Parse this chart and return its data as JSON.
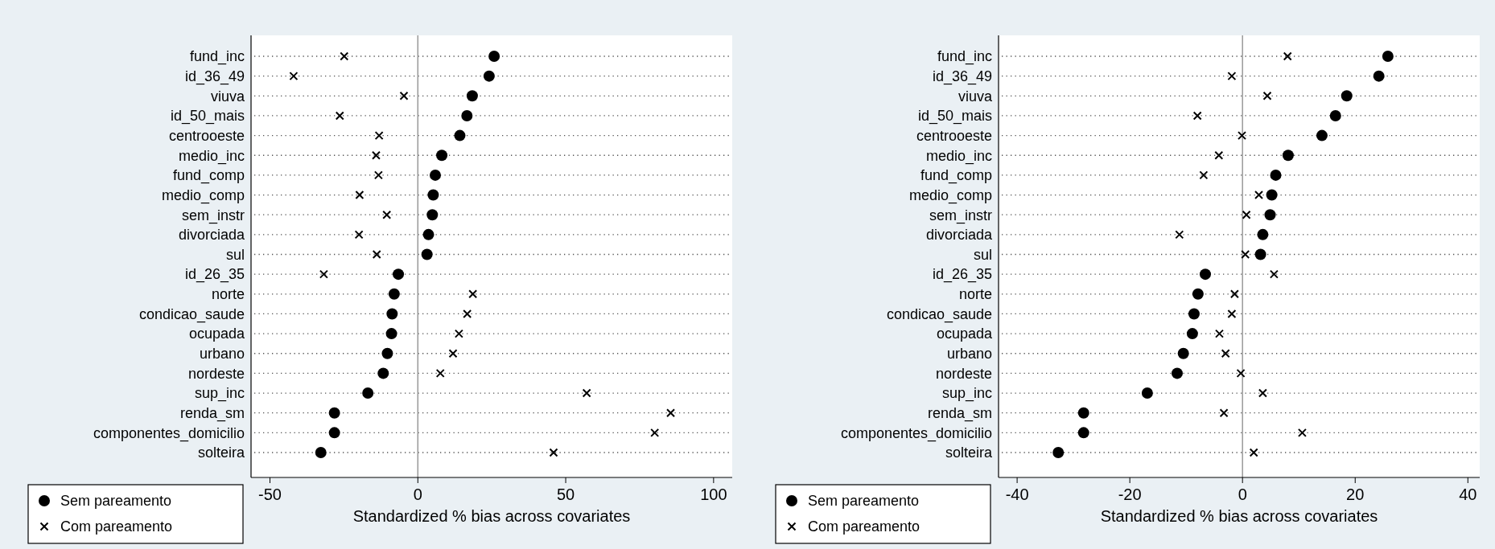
{
  "chart_data": [
    {
      "type": "scatter",
      "orientation": "horizontal",
      "xlabel": "Standardized % bias across covariates",
      "categories": [
        "fund_inc",
        "id_36_49",
        "viuva",
        "id_50_mais",
        "centrooeste",
        "medio_inc",
        "fund_comp",
        "medio_comp",
        "sem_instr",
        "divorciada",
        "sul",
        "id_26_35",
        "norte",
        "condicao_saude",
        "ocupada",
        "urbano",
        "nordeste",
        "sup_inc",
        "renda_sm",
        "componentes_domicilio",
        "solteira"
      ],
      "series": [
        {
          "name": "Sem pareamento",
          "color": "#000000",
          "marker": "circle",
          "values": [
            25.8,
            24.1,
            18.4,
            16.6,
            14.2,
            8.1,
            5.9,
            5.2,
            4.9,
            3.6,
            3.1,
            -6.6,
            -8.0,
            -8.7,
            -8.9,
            -10.3,
            -11.7,
            -16.9,
            -28.2,
            -28.2,
            -32.8
          ]
        },
        {
          "name": "Com pareamento",
          "color": "#000000",
          "marker": "cross",
          "values": [
            -24.9,
            -42.0,
            -4.7,
            -26.4,
            -13.1,
            -14.1,
            -13.3,
            -19.7,
            -10.5,
            -19.9,
            -13.9,
            -31.8,
            18.6,
            16.7,
            13.9,
            11.9,
            7.6,
            57.1,
            85.5,
            80.1,
            45.9
          ]
        }
      ],
      "xlim": [
        -56.4,
        106.3
      ],
      "xticks": [
        -50,
        0,
        50,
        100
      ],
      "ref_lines": [
        {
          "axis": "x",
          "value": 0,
          "color": "#999999"
        }
      ],
      "grid": "y",
      "legend": "bottom left"
    },
    {
      "type": "scatter",
      "orientation": "horizontal",
      "xlabel": "Standardized % bias across covariates",
      "categories": [
        "fund_inc",
        "id_36_49",
        "viuva",
        "id_50_mais",
        "centrooeste",
        "medio_inc",
        "fund_comp",
        "medio_comp",
        "sem_instr",
        "divorciada",
        "sul",
        "id_26_35",
        "norte",
        "condicao_saude",
        "ocupada",
        "urbano",
        "nordeste",
        "sup_inc",
        "renda_sm",
        "componentes_domicilio",
        "solteira"
      ],
      "series": [
        {
          "name": "Sem pareamento",
          "color": "#000000",
          "marker": "circle",
          "values": [
            25.8,
            24.2,
            18.5,
            16.5,
            14.1,
            8.1,
            5.9,
            5.2,
            4.9,
            3.6,
            3.2,
            -6.6,
            -7.9,
            -8.6,
            -8.9,
            -10.5,
            -11.6,
            -16.9,
            -28.2,
            -28.2,
            -32.7
          ]
        },
        {
          "name": "Com pareamento",
          "color": "#000000",
          "marker": "cross",
          "values": [
            8.0,
            -1.9,
            4.4,
            -8.0,
            -0.1,
            -4.2,
            -6.9,
            2.9,
            0.7,
            -11.2,
            0.5,
            5.6,
            -1.4,
            -1.9,
            -4.1,
            -3.0,
            -0.3,
            3.6,
            -3.3,
            10.6,
            2.0
          ]
        }
      ],
      "xlim": [
        -43.3,
        42.1
      ],
      "xticks": [
        -40,
        -20,
        0,
        20,
        40
      ],
      "ref_lines": [
        {
          "axis": "x",
          "value": 0,
          "color": "#999999"
        }
      ],
      "grid": "y",
      "legend": "bottom left"
    }
  ]
}
